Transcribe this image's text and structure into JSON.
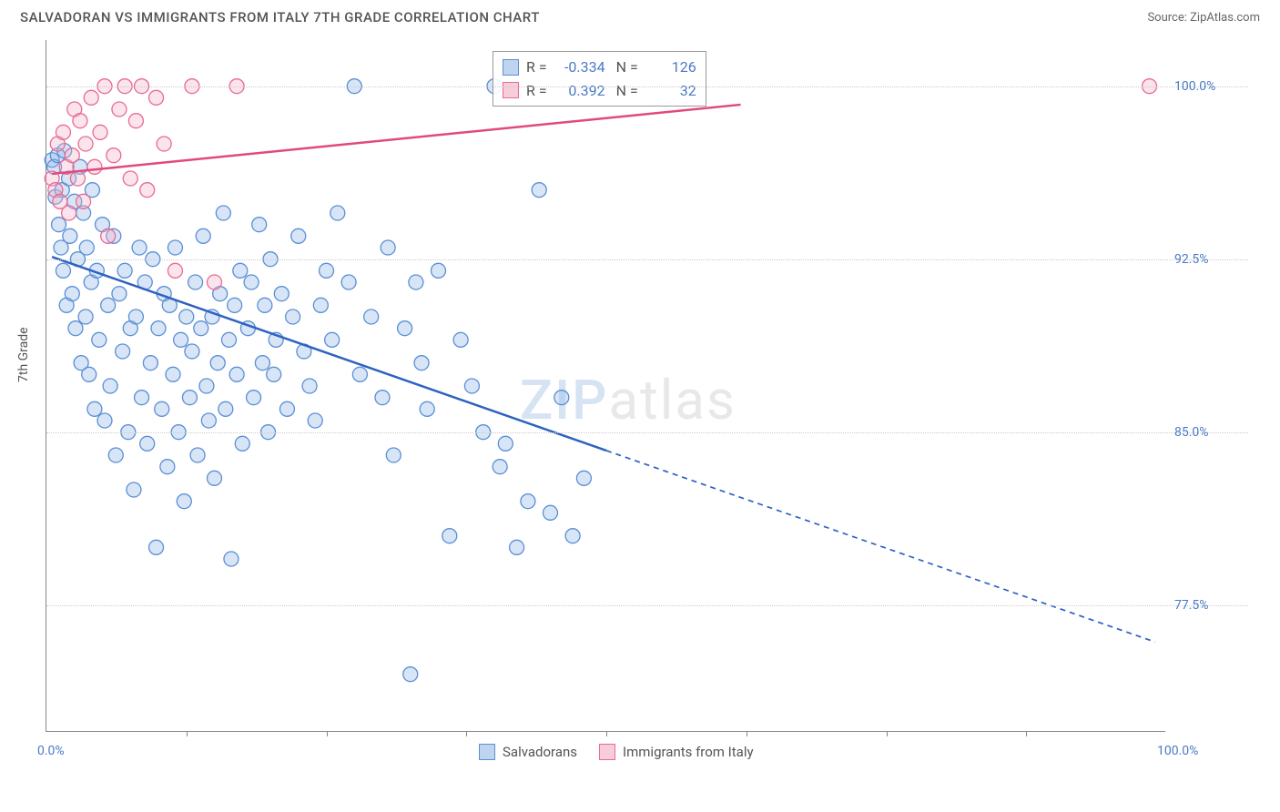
{
  "title": "SALVADORAN VS IMMIGRANTS FROM ITALY 7TH GRADE CORRELATION CHART",
  "source_label": "Source:",
  "source_name": "ZipAtlas.com",
  "ylabel": "7th Grade",
  "watermark_a": "ZIP",
  "watermark_b": "atlas",
  "chart": {
    "type": "scatter",
    "xlim": [
      0,
      100
    ],
    "ylim": [
      72,
      102
    ],
    "x_ticks": [
      0,
      100
    ],
    "x_tick_labels": [
      "0.0%",
      "100.0%"
    ],
    "x_minor_ticks": [
      12.5,
      25,
      37.5,
      50,
      62.5,
      75,
      87.5
    ],
    "y_ticks": [
      77.5,
      85.0,
      92.5,
      100.0
    ],
    "y_tick_labels": [
      "77.5%",
      "85.0%",
      "92.5%",
      "100.0%"
    ],
    "background_color": "#ffffff",
    "grid_color": "#cccccc",
    "marker_radius": 8,
    "marker_fill_opacity": 0.35,
    "marker_stroke_width": 1.3,
    "series": [
      {
        "name": "Salvadorans",
        "color_fill": "#8fb5e6",
        "color_stroke": "#5a8fd6",
        "swatch_fill": "#bfd4ef",
        "swatch_stroke": "#5a8fd6",
        "R": "-0.334",
        "N": "126",
        "trend": {
          "solid": {
            "x1": 0.5,
            "y1": 92.6,
            "x2": 50,
            "y2": 84.2
          },
          "dashed": {
            "x1": 50,
            "y1": 84.2,
            "x2": 99,
            "y2": 75.9
          },
          "stroke": "#2d62c0",
          "width": 2.5
        },
        "points": [
          [
            0.5,
            96.8
          ],
          [
            0.7,
            96.5
          ],
          [
            0.8,
            95.2
          ],
          [
            1.0,
            97.0
          ],
          [
            1.1,
            94.0
          ],
          [
            1.3,
            93.0
          ],
          [
            1.4,
            95.5
          ],
          [
            1.5,
            92.0
          ],
          [
            1.6,
            97.2
          ],
          [
            1.8,
            90.5
          ],
          [
            2.0,
            96.0
          ],
          [
            2.1,
            93.5
          ],
          [
            2.3,
            91.0
          ],
          [
            2.5,
            95.0
          ],
          [
            2.6,
            89.5
          ],
          [
            2.8,
            92.5
          ],
          [
            3.0,
            96.5
          ],
          [
            3.1,
            88.0
          ],
          [
            3.3,
            94.5
          ],
          [
            3.5,
            90.0
          ],
          [
            3.6,
            93.0
          ],
          [
            3.8,
            87.5
          ],
          [
            4.0,
            91.5
          ],
          [
            4.1,
            95.5
          ],
          [
            4.3,
            86.0
          ],
          [
            4.5,
            92.0
          ],
          [
            4.7,
            89.0
          ],
          [
            5.0,
            94.0
          ],
          [
            5.2,
            85.5
          ],
          [
            5.5,
            90.5
          ],
          [
            5.7,
            87.0
          ],
          [
            6.0,
            93.5
          ],
          [
            6.2,
            84.0
          ],
          [
            6.5,
            91.0
          ],
          [
            6.8,
            88.5
          ],
          [
            7.0,
            92.0
          ],
          [
            7.3,
            85.0
          ],
          [
            7.5,
            89.5
          ],
          [
            7.8,
            82.5
          ],
          [
            8.0,
            90.0
          ],
          [
            8.3,
            93.0
          ],
          [
            8.5,
            86.5
          ],
          [
            8.8,
            91.5
          ],
          [
            9.0,
            84.5
          ],
          [
            9.3,
            88.0
          ],
          [
            9.5,
            92.5
          ],
          [
            9.8,
            80.0
          ],
          [
            10.0,
            89.5
          ],
          [
            10.3,
            86.0
          ],
          [
            10.5,
            91.0
          ],
          [
            10.8,
            83.5
          ],
          [
            11.0,
            90.5
          ],
          [
            11.3,
            87.5
          ],
          [
            11.5,
            93.0
          ],
          [
            11.8,
            85.0
          ],
          [
            12.0,
            89.0
          ],
          [
            12.3,
            82.0
          ],
          [
            12.5,
            90.0
          ],
          [
            12.8,
            86.5
          ],
          [
            13.0,
            88.5
          ],
          [
            13.3,
            91.5
          ],
          [
            13.5,
            84.0
          ],
          [
            13.8,
            89.5
          ],
          [
            14.0,
            93.5
          ],
          [
            14.3,
            87.0
          ],
          [
            14.5,
            85.5
          ],
          [
            14.8,
            90.0
          ],
          [
            15.0,
            83.0
          ],
          [
            15.3,
            88.0
          ],
          [
            15.5,
            91.0
          ],
          [
            15.8,
            94.5
          ],
          [
            16.0,
            86.0
          ],
          [
            16.3,
            89.0
          ],
          [
            16.5,
            79.5
          ],
          [
            16.8,
            90.5
          ],
          [
            17.0,
            87.5
          ],
          [
            17.3,
            92.0
          ],
          [
            17.5,
            84.5
          ],
          [
            18.0,
            89.5
          ],
          [
            18.3,
            91.5
          ],
          [
            18.5,
            86.5
          ],
          [
            19.0,
            94.0
          ],
          [
            19.3,
            88.0
          ],
          [
            19.5,
            90.5
          ],
          [
            19.8,
            85.0
          ],
          [
            20.0,
            92.5
          ],
          [
            20.3,
            87.5
          ],
          [
            20.5,
            89.0
          ],
          [
            21.0,
            91.0
          ],
          [
            21.5,
            86.0
          ],
          [
            22.0,
            90.0
          ],
          [
            22.5,
            93.5
          ],
          [
            23.0,
            88.5
          ],
          [
            23.5,
            87.0
          ],
          [
            24.0,
            85.5
          ],
          [
            24.5,
            90.5
          ],
          [
            25.0,
            92.0
          ],
          [
            25.5,
            89.0
          ],
          [
            26.0,
            94.5
          ],
          [
            27.0,
            91.5
          ],
          [
            27.5,
            100.0
          ],
          [
            28.0,
            87.5
          ],
          [
            29.0,
            90.0
          ],
          [
            30.0,
            86.5
          ],
          [
            30.5,
            93.0
          ],
          [
            31.0,
            84.0
          ],
          [
            32.0,
            89.5
          ],
          [
            32.5,
            74.5
          ],
          [
            33.0,
            91.5
          ],
          [
            33.5,
            88.0
          ],
          [
            34.0,
            86.0
          ],
          [
            35.0,
            92.0
          ],
          [
            36.0,
            80.5
          ],
          [
            37.0,
            89.0
          ],
          [
            38.0,
            87.0
          ],
          [
            39.0,
            85.0
          ],
          [
            40.0,
            100.0
          ],
          [
            40.5,
            83.5
          ],
          [
            41.0,
            84.5
          ],
          [
            42.0,
            80.0
          ],
          [
            43.0,
            82.0
          ],
          [
            44.0,
            95.5
          ],
          [
            45.0,
            81.5
          ],
          [
            46.0,
            86.5
          ],
          [
            47.0,
            80.5
          ],
          [
            48.0,
            83.0
          ]
        ]
      },
      {
        "name": "Immigrants from Italy",
        "color_fill": "#f4b3c6",
        "color_stroke": "#e86b94",
        "swatch_fill": "#f7cdd9",
        "swatch_stroke": "#e86b94",
        "R": "0.392",
        "N": "32",
        "trend": {
          "solid": {
            "x1": 0.5,
            "y1": 96.2,
            "x2": 62,
            "y2": 99.2
          },
          "dashed": null,
          "stroke": "#e04a7c",
          "width": 2.5
        },
        "points": [
          [
            0.5,
            96.0
          ],
          [
            0.8,
            95.5
          ],
          [
            1.0,
            97.5
          ],
          [
            1.2,
            95.0
          ],
          [
            1.5,
            98.0
          ],
          [
            1.8,
            96.5
          ],
          [
            2.0,
            94.5
          ],
          [
            2.3,
            97.0
          ],
          [
            2.5,
            99.0
          ],
          [
            2.8,
            96.0
          ],
          [
            3.0,
            98.5
          ],
          [
            3.3,
            95.0
          ],
          [
            3.5,
            97.5
          ],
          [
            4.0,
            99.5
          ],
          [
            4.3,
            96.5
          ],
          [
            4.8,
            98.0
          ],
          [
            5.2,
            100.0
          ],
          [
            5.5,
            93.5
          ],
          [
            6.0,
            97.0
          ],
          [
            6.5,
            99.0
          ],
          [
            7.0,
            100.0
          ],
          [
            7.5,
            96.0
          ],
          [
            8.0,
            98.5
          ],
          [
            8.5,
            100.0
          ],
          [
            9.0,
            95.5
          ],
          [
            9.8,
            99.5
          ],
          [
            10.5,
            97.5
          ],
          [
            11.5,
            92.0
          ],
          [
            13.0,
            100.0
          ],
          [
            15.0,
            91.5
          ],
          [
            17.0,
            100.0
          ],
          [
            98.5,
            100.0
          ]
        ]
      }
    ]
  },
  "legend_bottom": [
    {
      "label": "Salvadorans",
      "fill": "#bfd4ef",
      "stroke": "#5a8fd6"
    },
    {
      "label": "Immigrants from Italy",
      "fill": "#f7cdd9",
      "stroke": "#e86b94"
    }
  ]
}
